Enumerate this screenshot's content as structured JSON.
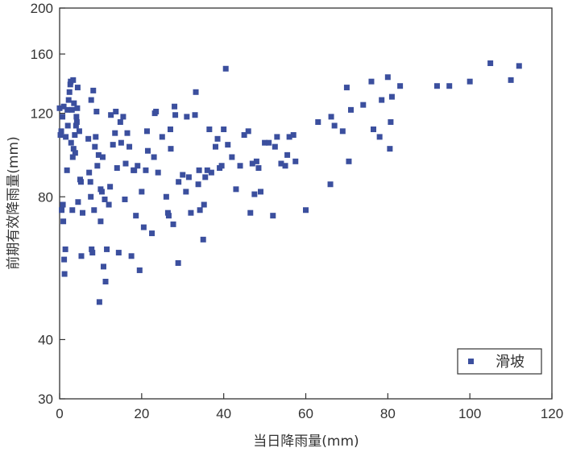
{
  "chart_data": {
    "type": "scatter",
    "xlabel": "当日降雨量(mm)",
    "ylabel": "前期有效降雨量(mm)",
    "xlim": [
      0,
      120
    ],
    "ylim": [
      30,
      200
    ],
    "y_scale": "log",
    "xticks": [
      0,
      20,
      40,
      60,
      80,
      100,
      120
    ],
    "yticks": [
      30,
      40,
      80,
      120,
      160,
      200
    ],
    "grid": false,
    "legend_position": "bottom-right",
    "marker_color": "#3b4f9e",
    "series": [
      {
        "name": "滑坡",
        "marker": "square",
        "points": [
          [
            0.0,
            123
          ],
          [
            0.2,
            108
          ],
          [
            0.4,
            110
          ],
          [
            0.5,
            75
          ],
          [
            0.7,
            118
          ],
          [
            0.8,
            77
          ],
          [
            0.9,
            71
          ],
          [
            1.0,
            124
          ],
          [
            1.1,
            59
          ],
          [
            1.2,
            55
          ],
          [
            1.4,
            62
          ],
          [
            1.5,
            107
          ],
          [
            1.8,
            91
          ],
          [
            1.9,
            122
          ],
          [
            2.0,
            113
          ],
          [
            2.2,
            128
          ],
          [
            2.4,
            133
          ],
          [
            2.6,
            138
          ],
          [
            2.7,
            140
          ],
          [
            2.8,
            104
          ],
          [
            3.0,
            122
          ],
          [
            3.1,
            75
          ],
          [
            3.2,
            97
          ],
          [
            3.3,
            141
          ],
          [
            3.4,
            101
          ],
          [
            3.5,
            126
          ],
          [
            3.7,
            108
          ],
          [
            3.8,
            99
          ],
          [
            4.0,
            113
          ],
          [
            4.1,
            118
          ],
          [
            4.2,
            115
          ],
          [
            4.3,
            123
          ],
          [
            4.4,
            136
          ],
          [
            4.5,
            78
          ],
          [
            4.8,
            110
          ],
          [
            5.0,
            87
          ],
          [
            5.2,
            86
          ],
          [
            5.3,
            60
          ],
          [
            5.6,
            74
          ],
          [
            7.0,
            106
          ],
          [
            7.2,
            90
          ],
          [
            7.5,
            86
          ],
          [
            7.6,
            80
          ],
          [
            7.7,
            128
          ],
          [
            7.8,
            62
          ],
          [
            8.0,
            61
          ],
          [
            8.2,
            134
          ],
          [
            8.4,
            75
          ],
          [
            8.6,
            102
          ],
          [
            8.8,
            107
          ],
          [
            9.0,
            121
          ],
          [
            9.2,
            93
          ],
          [
            9.5,
            98
          ],
          [
            9.7,
            48
          ],
          [
            10.0,
            71
          ],
          [
            10.0,
            83
          ],
          [
            10.3,
            82
          ],
          [
            10.5,
            97
          ],
          [
            10.7,
            57
          ],
          [
            11.0,
            79
          ],
          [
            11.2,
            53
          ],
          [
            11.5,
            62
          ],
          [
            12.0,
            77
          ],
          [
            12.3,
            84
          ],
          [
            12.5,
            119
          ],
          [
            13.0,
            103
          ],
          [
            13.5,
            109
          ],
          [
            13.7,
            121
          ],
          [
            14.0,
            92
          ],
          [
            14.4,
            61
          ],
          [
            14.8,
            115
          ],
          [
            15.0,
            104
          ],
          [
            15.5,
            118
          ],
          [
            15.9,
            79
          ],
          [
            16.1,
            94
          ],
          [
            16.5,
            109
          ],
          [
            17.0,
            102
          ],
          [
            17.5,
            60
          ],
          [
            18.0,
            91
          ],
          [
            18.2,
            91
          ],
          [
            18.6,
            73
          ],
          [
            19.0,
            93
          ],
          [
            19.5,
            56
          ],
          [
            20.0,
            82
          ],
          [
            20.5,
            69
          ],
          [
            21.0,
            91
          ],
          [
            21.3,
            110
          ],
          [
            21.5,
            100
          ],
          [
            22.5,
            67
          ],
          [
            23.0,
            97
          ],
          [
            23.2,
            120
          ],
          [
            23.5,
            121
          ],
          [
            24.0,
            90
          ],
          [
            25.0,
            107
          ],
          [
            26.0,
            80
          ],
          [
            26.4,
            74
          ],
          [
            26.6,
            73
          ],
          [
            27.0,
            111
          ],
          [
            27.1,
            101
          ],
          [
            27.7,
            70
          ],
          [
            28.0,
            124
          ],
          [
            28.2,
            119
          ],
          [
            28.9,
            58
          ],
          [
            29.0,
            86
          ],
          [
            30.0,
            89
          ],
          [
            30.8,
            82
          ],
          [
            31.0,
            118
          ],
          [
            31.5,
            88
          ],
          [
            32.0,
            74
          ],
          [
            33.0,
            119
          ],
          [
            33.2,
            133
          ],
          [
            33.8,
            85
          ],
          [
            34.0,
            91
          ],
          [
            34.2,
            75
          ],
          [
            35.0,
            65
          ],
          [
            35.2,
            77
          ],
          [
            35.5,
            88
          ],
          [
            36.0,
            91
          ],
          [
            36.5,
            111
          ],
          [
            37.0,
            90
          ],
          [
            38.0,
            102
          ],
          [
            38.5,
            106
          ],
          [
            39.0,
            92
          ],
          [
            39.5,
            93
          ],
          [
            40.0,
            111
          ],
          [
            40.5,
            149
          ],
          [
            41.0,
            103
          ],
          [
            42.0,
            97
          ],
          [
            43.0,
            83
          ],
          [
            44.0,
            93
          ],
          [
            45.0,
            108
          ],
          [
            46.0,
            110
          ],
          [
            46.5,
            74
          ],
          [
            47.0,
            94
          ],
          [
            47.5,
            81
          ],
          [
            48.0,
            95
          ],
          [
            48.5,
            92
          ],
          [
            49.0,
            82
          ],
          [
            50.0,
            104
          ],
          [
            51.0,
            104
          ],
          [
            52.0,
            73
          ],
          [
            52.5,
            102
          ],
          [
            53.0,
            107
          ],
          [
            54.0,
            94
          ],
          [
            55.0,
            93
          ],
          [
            55.5,
            98
          ],
          [
            56.0,
            107
          ],
          [
            57.0,
            108
          ],
          [
            57.5,
            95
          ],
          [
            60.0,
            75
          ],
          [
            63.0,
            115
          ],
          [
            66.0,
            85
          ],
          [
            66.2,
            118
          ],
          [
            67.0,
            113
          ],
          [
            69.0,
            110
          ],
          [
            70.0,
            136
          ],
          [
            70.5,
            95
          ],
          [
            71.0,
            122
          ],
          [
            74.0,
            125
          ],
          [
            76.0,
            140
          ],
          [
            76.5,
            111
          ],
          [
            78.0,
            107
          ],
          [
            78.5,
            128
          ],
          [
            80.0,
            143
          ],
          [
            80.5,
            101
          ],
          [
            80.7,
            115
          ],
          [
            81.0,
            130
          ],
          [
            83.0,
            137
          ],
          [
            92.0,
            137
          ],
          [
            95.0,
            137
          ],
          [
            100.0,
            140
          ],
          [
            105.0,
            153
          ],
          [
            110.0,
            141
          ],
          [
            112.0,
            151
          ]
        ]
      }
    ]
  }
}
